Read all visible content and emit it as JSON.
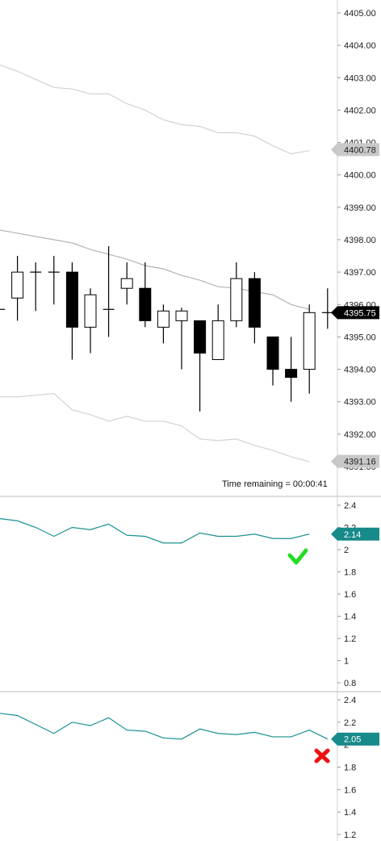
{
  "chart_data": [
    {
      "type": "candlestick",
      "ylim": [
        4390.7,
        4405.4
      ],
      "y_ticks": [
        4391,
        4392,
        4393,
        4394,
        4395,
        4396,
        4397,
        4398,
        4399,
        4400,
        4401,
        4402,
        4403,
        4404,
        4405
      ],
      "y_tick_labels": [
        "4391.00",
        "4392.00",
        "4393.00",
        "4394.00",
        "4395.00",
        "4396.00",
        "4397.00",
        "4398.00",
        "4399.00",
        "4400.00",
        "4401.00",
        "4402.00",
        "4403.00",
        "4404.00",
        "4405.00"
      ],
      "candles": [
        {
          "open": 4395.85,
          "high": 4395.85,
          "low": 4395.85,
          "close": 4395.85
        },
        {
          "open": 4396.2,
          "high": 4397.5,
          "low": 4395.5,
          "close": 4397.0
        },
        {
          "open": 4397.0,
          "high": 4397.3,
          "low": 4395.8,
          "close": 4397.0
        },
        {
          "open": 4397.0,
          "high": 4397.5,
          "low": 4396.0,
          "close": 4397.0
        },
        {
          "open": 4397.0,
          "high": 4397.3,
          "low": 4394.3,
          "close": 4395.3
        },
        {
          "open": 4395.3,
          "high": 4396.5,
          "low": 4394.5,
          "close": 4396.3
        },
        {
          "open": 4395.85,
          "high": 4397.8,
          "low": 4395.0,
          "close": 4395.85
        },
        {
          "open": 4396.5,
          "high": 4397.3,
          "low": 4396.0,
          "close": 4396.8
        },
        {
          "open": 4396.5,
          "high": 4397.3,
          "low": 4395.3,
          "close": 4395.5
        },
        {
          "open": 4395.3,
          "high": 4396.0,
          "low": 4394.8,
          "close": 4395.8
        },
        {
          "open": 4395.5,
          "high": 4395.9,
          "low": 4394.0,
          "close": 4395.8
        },
        {
          "open": 4395.5,
          "high": 4395.5,
          "low": 4392.7,
          "close": 4394.5
        },
        {
          "open": 4394.3,
          "high": 4396.0,
          "low": 4394.3,
          "close": 4395.5
        },
        {
          "open": 4395.5,
          "high": 4397.3,
          "low": 4395.3,
          "close": 4396.8
        },
        {
          "open": 4396.8,
          "high": 4397.0,
          "low": 4394.8,
          "close": 4395.3
        },
        {
          "open": 4395.0,
          "high": 4395.0,
          "low": 4393.5,
          "close": 4394.0
        },
        {
          "open": 4394.0,
          "high": 4395.0,
          "low": 4393.0,
          "close": 4393.75
        },
        {
          "open": 4394.0,
          "high": 4396.0,
          "low": 4393.25,
          "close": 4395.75
        },
        {
          "open": 4395.75,
          "high": 4396.5,
          "low": 4395.25,
          "close": 4395.75
        }
      ],
      "bands": {
        "upper": [
          4403.4,
          4403.2,
          4402.95,
          4402.7,
          4402.65,
          4402.5,
          4402.5,
          4402.2,
          4402.0,
          4401.7,
          4401.55,
          4401.5,
          4401.3,
          4401.3,
          4401.2,
          4400.9,
          4400.65,
          4400.75
        ],
        "middle": [
          4398.3,
          4398.2,
          4398.1,
          4398.0,
          4397.9,
          4397.7,
          4397.55,
          4397.4,
          4397.2,
          4397.1,
          4396.9,
          4396.75,
          4396.55,
          4396.5,
          4396.4,
          4396.3,
          4396.0,
          4395.85
        ],
        "lower": [
          4393.15,
          4393.15,
          4393.2,
          4393.25,
          4392.75,
          4392.6,
          4392.4,
          4392.55,
          4392.4,
          4392.4,
          4392.25,
          4391.85,
          4391.8,
          4391.85,
          4391.65,
          4391.5,
          4391.3,
          4391.15
        ]
      },
      "markers": [
        {
          "label": "4400.78",
          "value": 4400.78,
          "style": "gray"
        },
        {
          "label": "4395.75",
          "value": 4395.75,
          "style": "black"
        },
        {
          "label": "4391.16",
          "value": 4391.16,
          "style": "gray"
        }
      ],
      "annotation": "Time remaining = 00:00:41"
    },
    {
      "type": "line",
      "ylim": [
        0.7,
        2.52
      ],
      "y_ticks": [
        0.8,
        1,
        1.2,
        1.4,
        1.6,
        1.8,
        2,
        2.2,
        2.4
      ],
      "y_tick_labels": [
        "0.8",
        "1",
        "1.2",
        "1.4",
        "1.6",
        "1.8",
        "2",
        "2.2",
        "2.4"
      ],
      "values": [
        2.28,
        2.26,
        2.2,
        2.12,
        2.2,
        2.18,
        2.23,
        2.13,
        2.12,
        2.06,
        2.06,
        2.15,
        2.12,
        2.12,
        2.14,
        2.1,
        2.1,
        2.14
      ],
      "color": "#1a9090",
      "marker": {
        "label": "2.14",
        "value": 2.14
      },
      "status_icon": "check-icon",
      "status_color": "#22dd22"
    },
    {
      "type": "line",
      "ylim": [
        1.15,
        2.5
      ],
      "y_ticks": [
        1.2,
        1.4,
        1.6,
        1.8,
        2,
        2.2,
        2.4
      ],
      "y_tick_labels": [
        "1.2",
        "1.4",
        "1.6",
        "1.8",
        "2",
        "2.2",
        "2.4"
      ],
      "values": [
        2.28,
        2.26,
        2.18,
        2.1,
        2.2,
        2.17,
        2.24,
        2.13,
        2.12,
        2.06,
        2.05,
        2.14,
        2.1,
        2.09,
        2.11,
        2.07,
        2.07,
        2.13,
        2.05
      ],
      "color": "#1a9090",
      "marker": {
        "label": "2.05",
        "value": 2.05
      },
      "status_icon": "cross-icon",
      "status_color": "#ee1111"
    }
  ]
}
